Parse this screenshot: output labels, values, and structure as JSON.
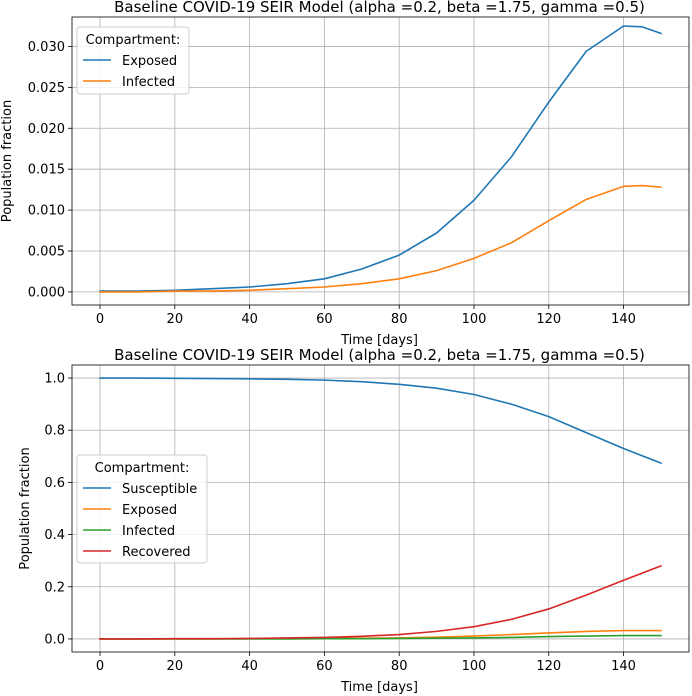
{
  "colors": {
    "blue": "#1f77b4",
    "orange": "#ff7f0e",
    "green": "#2ca02c",
    "red": "#d62728",
    "grid": "#b0b0b0"
  },
  "chart_data": [
    {
      "type": "line",
      "title": "Baseline COVID-19 SEIR Model (alpha =0.2, beta =1.75, gamma =0.5)",
      "xlabel": "Time [days]",
      "ylabel": "Population fraction",
      "xlim": [
        -7.5,
        157.5
      ],
      "ylim": [
        -0.0016,
        0.0336
      ],
      "grid": true,
      "x_ticks": [
        0,
        20,
        40,
        60,
        80,
        100,
        120,
        140
      ],
      "x_tick_labels": [
        "0",
        "20",
        "40",
        "60",
        "80",
        "100",
        "120",
        "140"
      ],
      "y_ticks": [
        0.0,
        0.005,
        0.01,
        0.015,
        0.02,
        0.025,
        0.03
      ],
      "y_tick_labels": [
        "0.000",
        "0.005",
        "0.010",
        "0.015",
        "0.020",
        "0.025",
        "0.030"
      ],
      "legend": {
        "title": "Compartment:",
        "position": "upper left"
      },
      "x": [
        0,
        10,
        20,
        30,
        40,
        50,
        60,
        70,
        80,
        90,
        100,
        110,
        120,
        130,
        140,
        145,
        150
      ],
      "series": [
        {
          "name": "Exposed",
          "color_key": "blue",
          "values": [
            0.0001,
            0.0001,
            0.0002,
            0.0004,
            0.0006,
            0.001,
            0.0016,
            0.0028,
            0.0045,
            0.0072,
            0.0112,
            0.0165,
            0.0232,
            0.0294,
            0.0325,
            0.0324,
            0.0316
          ]
        },
        {
          "name": "Infected",
          "color_key": "orange",
          "values": [
            0.0,
            0.0,
            0.0001,
            0.0001,
            0.0002,
            0.0004,
            0.0006,
            0.001,
            0.0016,
            0.0026,
            0.0041,
            0.006,
            0.0087,
            0.0113,
            0.0129,
            0.013,
            0.0128
          ]
        }
      ]
    },
    {
      "type": "line",
      "title": "Baseline COVID-19 SEIR Model (alpha =0.2, beta =1.75, gamma =0.5)",
      "xlabel": "Time [days]",
      "ylabel": "Population fraction",
      "xlim": [
        -7.5,
        157.5
      ],
      "ylim": [
        -0.05,
        1.05
      ],
      "grid": true,
      "x_ticks": [
        0,
        20,
        40,
        60,
        80,
        100,
        120,
        140
      ],
      "x_tick_labels": [
        "0",
        "20",
        "40",
        "60",
        "80",
        "100",
        "120",
        "140"
      ],
      "y_ticks": [
        0.0,
        0.2,
        0.4,
        0.6,
        0.8,
        1.0
      ],
      "y_tick_labels": [
        "0.0",
        "0.2",
        "0.4",
        "0.6",
        "0.8",
        "1.0"
      ],
      "legend": {
        "title": "Compartment:",
        "position": "center left"
      },
      "x": [
        0,
        10,
        20,
        30,
        40,
        50,
        60,
        70,
        80,
        90,
        100,
        110,
        120,
        130,
        140,
        150
      ],
      "series": [
        {
          "name": "Susceptible",
          "color_key": "blue",
          "values": [
            1.0,
            1.0,
            0.999,
            0.998,
            0.997,
            0.995,
            0.992,
            0.986,
            0.976,
            0.961,
            0.937,
            0.9,
            0.852,
            0.791,
            0.73,
            0.674
          ]
        },
        {
          "name": "Exposed",
          "color_key": "orange",
          "values": [
            0.0,
            0.0,
            0.0,
            0.0,
            0.001,
            0.001,
            0.002,
            0.003,
            0.004,
            0.007,
            0.011,
            0.017,
            0.023,
            0.029,
            0.032,
            0.032
          ]
        },
        {
          "name": "Infected",
          "color_key": "green",
          "values": [
            0.0,
            0.0,
            0.0,
            0.0,
            0.0,
            0.0,
            0.001,
            0.001,
            0.002,
            0.003,
            0.004,
            0.006,
            0.009,
            0.011,
            0.013,
            0.013
          ]
        },
        {
          "name": "Recovered",
          "color_key": "red",
          "values": [
            0.0,
            0.0,
            0.001,
            0.001,
            0.002,
            0.004,
            0.006,
            0.01,
            0.017,
            0.029,
            0.047,
            0.075,
            0.115,
            0.168,
            0.225,
            0.28
          ]
        }
      ]
    }
  ]
}
